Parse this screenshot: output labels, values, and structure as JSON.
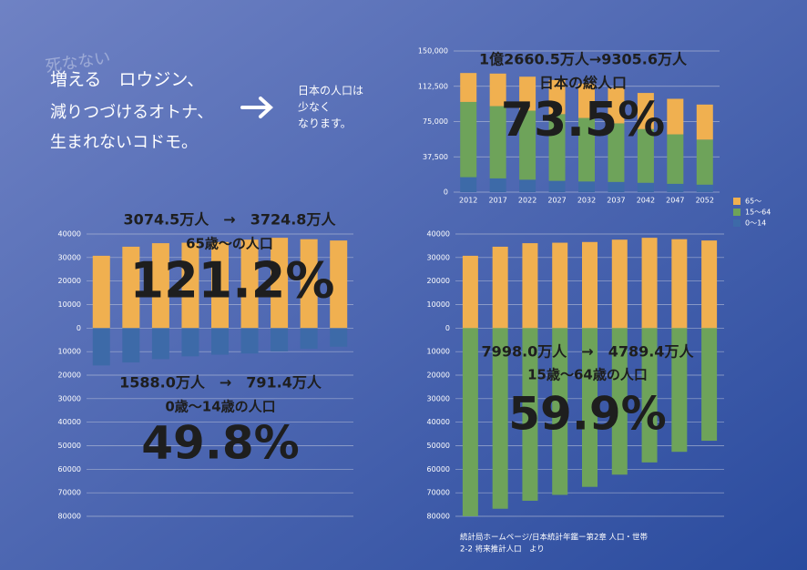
{
  "header": {
    "ghost": "死なない",
    "lines": [
      "増える　ロウジン、",
      "減りつづけるオトナ、",
      "生まれないコドモ。"
    ]
  },
  "note": [
    "日本の人口は",
    "少なく",
    "なります。"
  ],
  "source": [
    "統計局ホームページ/日本統計年鑑ー第2章 人口・世帯",
    "2-2 将来推計人口　より"
  ],
  "chart_data": [
    {
      "type": "bar",
      "stacked": true,
      "categories": [
        "2012",
        "2017",
        "2022",
        "2027",
        "2032",
        "2037",
        "2042",
        "2047",
        "2052"
      ],
      "series": [
        {
          "name": "0～14",
          "color": "#3d6aa8",
          "values": [
            15880,
            14600,
            13200,
            12000,
            11300,
            10800,
            9900,
            8800,
            7914
          ]
        },
        {
          "name": "15～64",
          "color": "#6ea35a",
          "values": [
            79980,
            76800,
            73400,
            70900,
            67500,
            62300,
            57100,
            52600,
            47894
          ]
        },
        {
          "name": "65～",
          "color": "#f0b050",
          "values": [
            30745,
            34600,
            36100,
            36300,
            36600,
            37600,
            38400,
            37800,
            37248
          ]
        }
      ],
      "ylim": [
        0,
        150000
      ],
      "yticks": [
        0,
        {
          "value": 37500,
          "label": "37,500"
        },
        {
          "value": 75000,
          "label": "75,000"
        },
        {
          "value": 112500,
          "label": "112,500"
        },
        {
          "value": 150000,
          "label": "150,000"
        }
      ],
      "grid": true,
      "legend": "lower right",
      "annotations": [
        "1億2660.5万人→9305.6万人",
        "日本の総人口",
        "73.5%"
      ]
    },
    {
      "type": "bar",
      "stacked": true,
      "series": [
        {
          "color": "#f0b050",
          "values": [
            30745,
            34600,
            36100,
            36300,
            36600,
            37600,
            38400,
            37800,
            37248
          ]
        },
        {
          "color": "#3d6aa8",
          "values": [
            -15880,
            -14600,
            -13200,
            -12000,
            -11300,
            -10800,
            -9900,
            -8800,
            -7914
          ]
        }
      ],
      "ylim": [
        -80000,
        40000
      ],
      "yticks": [
        40000,
        30000,
        20000,
        10000,
        0,
        {
          "value": -10000,
          "label": "10000"
        },
        {
          "value": -20000,
          "label": "20000"
        },
        {
          "value": -30000,
          "label": "30000"
        },
        {
          "value": -40000,
          "label": "40000"
        },
        {
          "value": -50000,
          "label": "50000"
        },
        {
          "value": -60000,
          "label": "60000"
        },
        {
          "value": -70000,
          "label": "70000"
        },
        {
          "value": -80000,
          "label": "80000"
        }
      ],
      "grid": true,
      "annotations": [
        "3074.5万人　→　3724.8万人",
        "65歳～の人口",
        "121.2%",
        "1588.0万人　→　791.4万人",
        "0歳～14歳の人口",
        "49.8%"
      ]
    },
    {
      "type": "bar",
      "stacked": true,
      "series": [
        {
          "color": "#f0b050",
          "values": [
            30745,
            34600,
            36100,
            36300,
            36600,
            37600,
            38400,
            37800,
            37248
          ]
        },
        {
          "color": "#6ea35a",
          "values": [
            -79980,
            -76800,
            -73400,
            -70900,
            -67500,
            -62300,
            -57100,
            -52600,
            -47894
          ]
        }
      ],
      "ylim": [
        -80000,
        40000
      ],
      "yticks": [
        40000,
        30000,
        20000,
        10000,
        0,
        {
          "value": -10000,
          "label": "10000"
        },
        {
          "value": -20000,
          "label": "20000"
        },
        {
          "value": -30000,
          "label": "30000"
        },
        {
          "value": -40000,
          "label": "40000"
        },
        {
          "value": -50000,
          "label": "50000"
        },
        {
          "value": -60000,
          "label": "60000"
        },
        {
          "value": -70000,
          "label": "70000"
        },
        {
          "value": -80000,
          "label": "80000"
        }
      ],
      "grid": true,
      "annotations": [
        "7998.0万人　→　4789.4万人",
        "15歳～64歳の人口",
        "59.9%"
      ]
    }
  ]
}
